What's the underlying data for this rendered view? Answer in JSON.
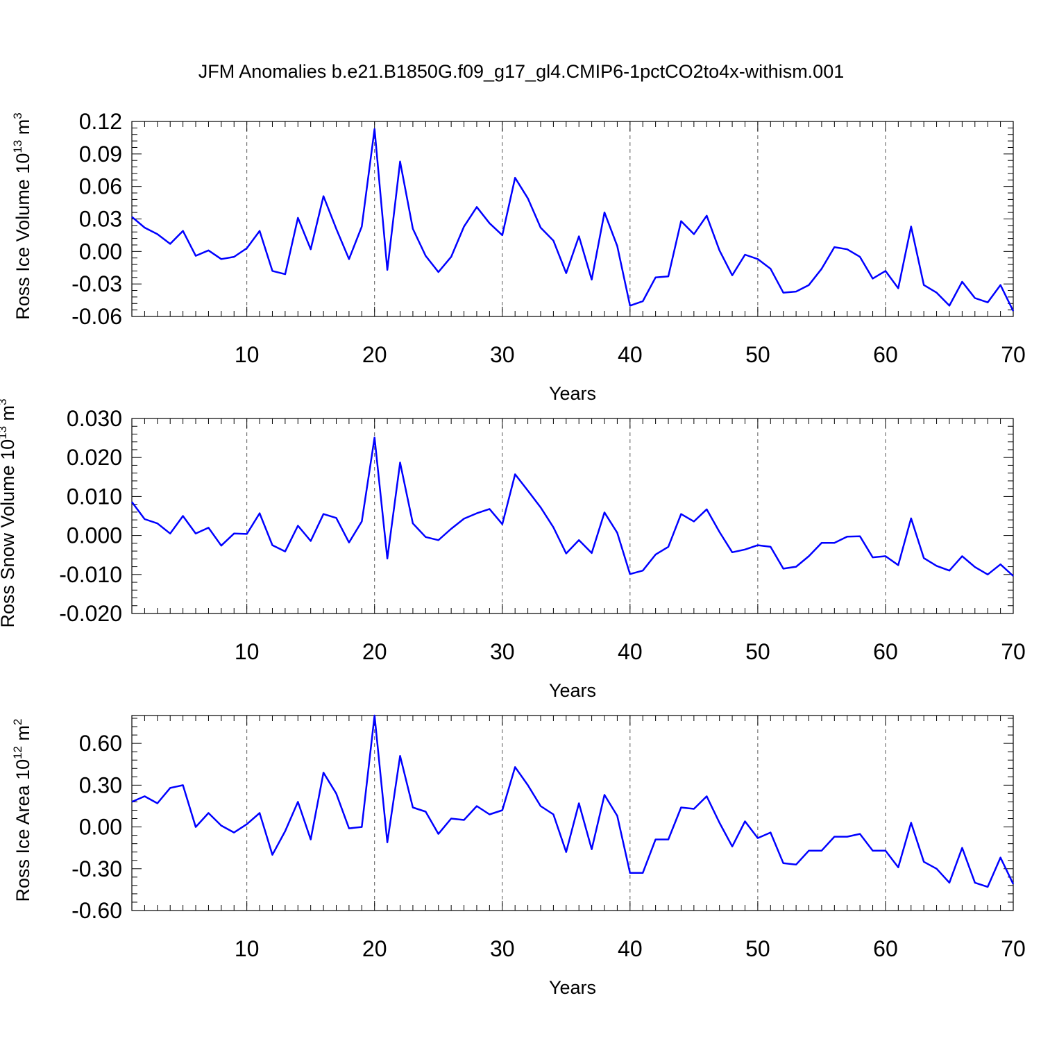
{
  "title": "JFM Anomalies b.e21.B1850G.f09_g17_gl4.CMIP6-1pctCO2to4x-withism.001",
  "line_color": "#0000ff",
  "chart_data": [
    {
      "type": "line",
      "name": "ice-volume",
      "ylabel": "Ross Ice Volume 10",
      "ylabel_exp": "13",
      "ylabel_unit": " m",
      "ylabel_unit_exp": "3",
      "xlabel": "Years",
      "xlim": [
        1,
        70
      ],
      "ylim": [
        -0.06,
        0.12
      ],
      "yticks": [
        -0.06,
        -0.03,
        0.0,
        0.03,
        0.06,
        0.09,
        0.12
      ],
      "ytick_labels": [
        "-0.06",
        "-0.03",
        "0.00",
        "0.03",
        "0.06",
        "0.09",
        "0.12"
      ],
      "xticks": [
        10,
        20,
        30,
        40,
        50,
        60,
        70
      ],
      "xtick_labels": [
        "10",
        "20",
        "30",
        "40",
        "50",
        "60",
        "70"
      ],
      "grid": "dashed-vertical",
      "x": [
        1,
        2,
        3,
        4,
        5,
        6,
        7,
        8,
        9,
        10,
        11,
        12,
        13,
        14,
        15,
        16,
        17,
        18,
        19,
        20,
        21,
        22,
        23,
        24,
        25,
        26,
        27,
        28,
        29,
        30,
        31,
        32,
        33,
        34,
        35,
        36,
        37,
        38,
        39,
        40,
        41,
        42,
        43,
        44,
        45,
        46,
        47,
        48,
        49,
        50,
        51,
        52,
        53,
        54,
        55,
        56,
        57,
        58,
        59,
        60,
        61,
        62,
        63,
        64,
        65,
        66,
        67,
        68,
        69,
        70
      ],
      "values": [
        0.032,
        0.022,
        0.016,
        0.007,
        0.019,
        -0.004,
        0.001,
        -0.007,
        -0.005,
        0.003,
        0.019,
        -0.018,
        -0.021,
        0.031,
        0.002,
        0.051,
        0.021,
        -0.007,
        0.023,
        0.113,
        -0.017,
        0.083,
        0.021,
        -0.004,
        -0.019,
        -0.005,
        0.023,
        0.041,
        0.026,
        0.015,
        0.068,
        0.049,
        0.022,
        0.01,
        -0.02,
        0.014,
        -0.026,
        0.036,
        0.005,
        -0.05,
        -0.046,
        -0.024,
        -0.023,
        0.028,
        0.016,
        0.033,
        0.001,
        -0.022,
        -0.003,
        -0.007,
        -0.016,
        -0.038,
        -0.037,
        -0.031,
        -0.016,
        0.004,
        0.002,
        -0.005,
        -0.025,
        -0.018,
        -0.034,
        0.023,
        -0.031,
        -0.038,
        -0.05,
        -0.028,
        -0.043,
        -0.047,
        -0.031,
        -0.055
      ]
    },
    {
      "type": "line",
      "name": "snow-volume",
      "ylabel": "Ross Snow Volume 10",
      "ylabel_exp": "13",
      "ylabel_unit": " m",
      "ylabel_unit_exp": "3",
      "xlabel": "Years",
      "xlim": [
        1,
        70
      ],
      "ylim": [
        -0.02,
        0.03
      ],
      "yticks": [
        -0.02,
        -0.01,
        0.0,
        0.01,
        0.02,
        0.03
      ],
      "ytick_labels": [
        "-0.020",
        "-0.010",
        "0.000",
        "0.010",
        "0.020",
        "0.030"
      ],
      "xticks": [
        10,
        20,
        30,
        40,
        50,
        60,
        70
      ],
      "xtick_labels": [
        "10",
        "20",
        "30",
        "40",
        "50",
        "60",
        "70"
      ],
      "grid": "dashed-vertical",
      "x": [
        1,
        2,
        3,
        4,
        5,
        6,
        7,
        8,
        9,
        10,
        11,
        12,
        13,
        14,
        15,
        16,
        17,
        18,
        19,
        20,
        21,
        22,
        23,
        24,
        25,
        26,
        27,
        28,
        29,
        30,
        31,
        32,
        33,
        34,
        35,
        36,
        37,
        38,
        39,
        40,
        41,
        42,
        43,
        44,
        45,
        46,
        47,
        48,
        49,
        50,
        51,
        52,
        53,
        54,
        55,
        56,
        57,
        58,
        59,
        60,
        61,
        62,
        63,
        64,
        65,
        66,
        67,
        68,
        69,
        70
      ],
      "values": [
        0.0086,
        0.0042,
        0.0031,
        0.0005,
        0.005,
        0.0005,
        0.002,
        -0.0026,
        0.0005,
        0.0004,
        0.0057,
        -0.0025,
        -0.0041,
        0.0025,
        -0.0014,
        0.0055,
        0.0045,
        -0.0018,
        0.0036,
        0.0251,
        -0.0059,
        0.0187,
        0.0031,
        -0.0004,
        -0.0012,
        0.0017,
        0.0043,
        0.0057,
        0.0068,
        0.0029,
        0.0157,
        0.0115,
        0.0072,
        0.0021,
        -0.0046,
        -0.0012,
        -0.0045,
        0.0059,
        0.0007,
        -0.0099,
        -0.009,
        -0.0049,
        -0.0029,
        0.0055,
        0.0036,
        0.0067,
        0.0009,
        -0.0043,
        -0.0036,
        -0.0025,
        -0.0029,
        -0.0085,
        -0.008,
        -0.0053,
        -0.0019,
        -0.0019,
        -0.0003,
        -0.0002,
        -0.0056,
        -0.0053,
        -0.0076,
        0.0044,
        -0.0058,
        -0.0078,
        -0.009,
        -0.0053,
        -0.0081,
        -0.01,
        -0.0074,
        -0.0104
      ]
    },
    {
      "type": "line",
      "name": "ice-area",
      "ylabel": "Ross Ice Area 10",
      "ylabel_exp": "12",
      "ylabel_unit": " m",
      "ylabel_unit_exp": "2",
      "xlabel": "Years",
      "xlim": [
        1,
        70
      ],
      "ylim": [
        -0.6,
        0.8
      ],
      "yticks": [
        -0.6,
        -0.3,
        0.0,
        0.3,
        0.6
      ],
      "ytick_labels": [
        "-0.60",
        "-0.30",
        "0.00",
        "0.30",
        "0.60"
      ],
      "xticks": [
        10,
        20,
        30,
        40,
        50,
        60,
        70
      ],
      "xtick_labels": [
        "10",
        "20",
        "30",
        "40",
        "50",
        "60",
        "70"
      ],
      "grid": "dashed-vertical",
      "x": [
        1,
        2,
        3,
        4,
        5,
        6,
        7,
        8,
        9,
        10,
        11,
        12,
        13,
        14,
        15,
        16,
        17,
        18,
        19,
        20,
        21,
        22,
        23,
        24,
        25,
        26,
        27,
        28,
        29,
        30,
        31,
        32,
        33,
        34,
        35,
        36,
        37,
        38,
        39,
        40,
        41,
        42,
        43,
        44,
        45,
        46,
        47,
        48,
        49,
        50,
        51,
        52,
        53,
        54,
        55,
        56,
        57,
        58,
        59,
        60,
        61,
        62,
        63,
        64,
        65,
        66,
        67,
        68,
        69,
        70
      ],
      "values": [
        0.18,
        0.22,
        0.17,
        0.28,
        0.3,
        0.0,
        0.1,
        0.01,
        -0.04,
        0.02,
        0.1,
        -0.2,
        -0.03,
        0.18,
        -0.09,
        0.39,
        0.24,
        -0.01,
        0.0,
        0.8,
        -0.11,
        0.51,
        0.14,
        0.11,
        -0.05,
        0.06,
        0.05,
        0.15,
        0.09,
        0.12,
        0.43,
        0.3,
        0.15,
        0.09,
        -0.18,
        0.17,
        -0.16,
        0.23,
        0.08,
        -0.33,
        -0.33,
        -0.09,
        -0.09,
        0.14,
        0.13,
        0.22,
        0.03,
        -0.14,
        0.04,
        -0.08,
        -0.04,
        -0.26,
        -0.27,
        -0.17,
        -0.17,
        -0.07,
        -0.07,
        -0.05,
        -0.17,
        -0.17,
        -0.29,
        0.03,
        -0.25,
        -0.3,
        -0.4,
        -0.15,
        -0.4,
        -0.43,
        -0.22,
        -0.41
      ]
    }
  ]
}
